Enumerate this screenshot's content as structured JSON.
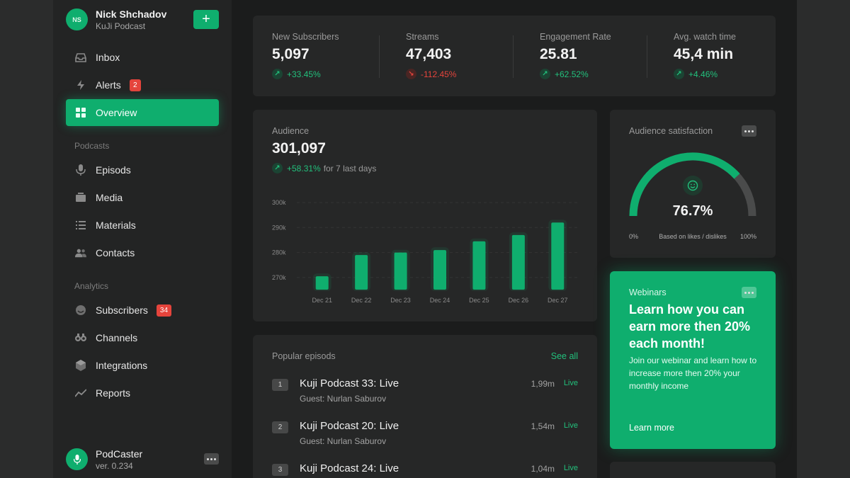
{
  "profile": {
    "initials": "NS",
    "name": "Nick Shchadov",
    "subtitle": "KuJi Podcast",
    "add_label": "+"
  },
  "nav": {
    "main": [
      {
        "label": "Inbox",
        "icon": "inbox-icon"
      },
      {
        "label": "Alerts",
        "icon": "bolt-icon",
        "badge": "2"
      },
      {
        "label": "Overview",
        "icon": "grid-icon",
        "active": true
      }
    ],
    "podcasts_label": "Podcasts",
    "podcasts": [
      {
        "label": "Episods",
        "icon": "mic-icon"
      },
      {
        "label": "Media",
        "icon": "media-icon"
      },
      {
        "label": "Materials",
        "icon": "list-icon"
      },
      {
        "label": "Contacts",
        "icon": "people-icon"
      }
    ],
    "analytics_label": "Analytics",
    "analytics": [
      {
        "label": "Subscribers",
        "icon": "smile-icon",
        "badge": "34"
      },
      {
        "label": "Channels",
        "icon": "binoculars-icon"
      },
      {
        "label": "Integrations",
        "icon": "cube-icon"
      },
      {
        "label": "Reports",
        "icon": "trend-icon"
      }
    ]
  },
  "footer": {
    "name": "PodCaster",
    "version": "ver. 0.234"
  },
  "stats": [
    {
      "label": "New Subscribers",
      "value": "5,097",
      "change": "+33.45%",
      "direction": "up"
    },
    {
      "label": "Streams",
      "value": "47,403",
      "change": "-112.45%",
      "direction": "down"
    },
    {
      "label": "Engagement Rate",
      "value": "25.81",
      "change": "+62.52%",
      "direction": "up"
    },
    {
      "label": "Avg. watch time",
      "value": "45,4 min",
      "change": "+4.46%",
      "direction": "up"
    }
  ],
  "audience": {
    "label": "Audience",
    "value": "301,097",
    "change": "+58.31%",
    "period": "for 7 last days"
  },
  "chart_data": {
    "type": "bar",
    "categories": [
      "Dec 21",
      "Dec 22",
      "Dec 23",
      "Dec 24",
      "Dec 25",
      "Dec 26",
      "Dec 27"
    ],
    "values": [
      270500,
      279000,
      280000,
      281000,
      284500,
      287000,
      292000
    ],
    "yticks": [
      "300k",
      "290k",
      "280k",
      "270k"
    ],
    "ylim": [
      264000,
      300000
    ],
    "color": "#0fae6e",
    "grid": true
  },
  "satisfaction": {
    "label": "Audience satisfaction",
    "value": "76.7%",
    "fraction": 0.767,
    "min_label": "0%",
    "caption": "Based on likes / dislikes",
    "max_label": "100%"
  },
  "webinar": {
    "tag": "Webinars",
    "title": "Learn how you can earn more then 20% each month!",
    "description": "Join our webinar and learn how to increase more then 20% your monthly income",
    "link": "Learn more"
  },
  "popular": {
    "title": "Popular episods",
    "see_all": "See all",
    "episodes": [
      {
        "num": "1",
        "title": "Kuji Podcast 33: Live",
        "guest": "Guest: Nurlan Saburov",
        "plays": "1,99m",
        "status": "Live"
      },
      {
        "num": "2",
        "title": "Kuji Podcast 20: Live",
        "guest": "Guest: Nurlan Saburov",
        "plays": "1,54m",
        "status": "Live"
      },
      {
        "num": "3",
        "title": "Kuji Podcast 24: Live",
        "guest": "",
        "plays": "1,04m",
        "status": "Live"
      }
    ]
  },
  "colors": {
    "accent": "#0fae6e",
    "danger": "#e5443c",
    "background": "#1b1c1c",
    "card": "#262727"
  }
}
